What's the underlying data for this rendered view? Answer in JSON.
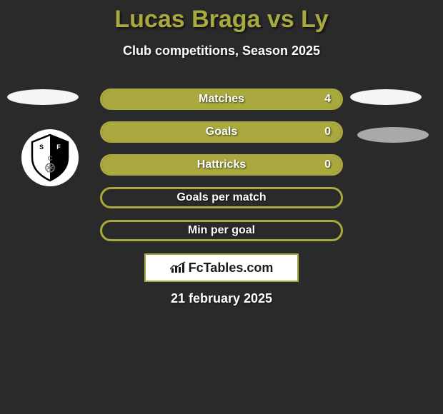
{
  "header": {
    "title": "Lucas Braga vs Ly",
    "subtitle": "Club competitions, Season 2025"
  },
  "stats": [
    {
      "label": "Matches",
      "right_value": "4",
      "fill_pct": 100
    },
    {
      "label": "Goals",
      "right_value": "0",
      "fill_pct": 100
    },
    {
      "label": "Hattricks",
      "right_value": "0",
      "fill_pct": 100
    },
    {
      "label": "Goals per match",
      "right_value": "",
      "fill_pct": 0
    },
    {
      "label": "Min per goal",
      "right_value": "",
      "fill_pct": 0
    }
  ],
  "style": {
    "bar_fill_color": "#a9a93f",
    "bar_border_color": "#a9a93f",
    "bar_border_width": 3,
    "bar_radius": 15,
    "title_color": "#a9a93f",
    "text_color": "#ffffff",
    "background": "#2a2a2a"
  },
  "footer": {
    "brand": "FcTables.com",
    "date": "21 february 2025"
  }
}
